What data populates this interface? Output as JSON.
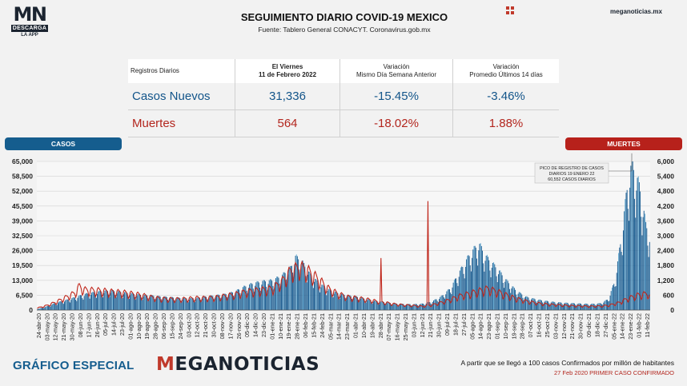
{
  "brand": {
    "logo_letters": "MN",
    "logo_band": "DESCARGA",
    "logo_sub": "LA APP",
    "site": "meganoticias.mx"
  },
  "header": {
    "title": "SEGUIMIENTO DIARIO COVID-19 MEXICO",
    "subtitle": "Fuente: Tablero General CONACYT. Coronavirus.gob.mx"
  },
  "summary": {
    "headers": [
      "Registros Diarios",
      "El Viernes\n11 de Febrero 2022",
      "Variación\nMismo Día Semana Anterior",
      "Variación\nPromedio Últimos 14 días"
    ],
    "rows": [
      {
        "label": "Casos Nuevos",
        "value": "31,336",
        "var_week": "-15.45%",
        "var_14d": "-3.46%"
      },
      {
        "label": "Muertes",
        "value": "564",
        "var_week": "-18.02%",
        "var_14d": "1.88%"
      }
    ]
  },
  "labels": {
    "cases": "CASOS",
    "deaths": "MUERTES"
  },
  "annotation": {
    "lines": [
      "PICO DE REGISTRO DE CASOS",
      "DIARIOS 19 ENERO 22",
      "60,552 CASOS DIARIOS"
    ]
  },
  "colors": {
    "cases": "#1d5f93",
    "deaths": "#c0271c",
    "cases_light": "#5ea6cf"
  },
  "footer": {
    "left": "GRÁFICO ESPECIAL",
    "brand_first": "M",
    "brand_rest": "EGANOTICIAS",
    "note1": "A partir que se llegó a 100 casos Confirmados por millón de habitantes",
    "note2": "27 Feb 2020 PRIMER CASO CONFIRMADO"
  },
  "chart_data": {
    "type": "bar",
    "x_tick_labels": [
      "24-abr-20",
      "03-may-20",
      "12-may-20",
      "21-may-20",
      "30-may-20",
      "08-jun-20",
      "17-jun-20",
      "26-jun-20",
      "05-jul-20",
      "14-jul-20",
      "23-jul-20",
      "01-ago-20",
      "10-ago-20",
      "19-ago-20",
      "28-ago-20",
      "06-sep-20",
      "15-sep-20",
      "24-sep-20",
      "03-oct-20",
      "12-oct-20",
      "21-oct-20",
      "30-oct-20",
      "08-nov-20",
      "17-nov-20",
      "26-nov-20",
      "05-dic-20",
      "14-dic-20",
      "23-dic-20",
      "01-ene-21",
      "10-ene-21",
      "19-ene-21",
      "28-ene-21",
      "06-feb-21",
      "15-feb-21",
      "24-feb-21",
      "05-mar-21",
      "14-mar-21",
      "23-mar-21",
      "01-abr-21",
      "10-abr-21",
      "19-abr-21",
      "28-abr-21",
      "07-may-21",
      "16-may-21",
      "25-may-21",
      "03-jun-21",
      "12-jun-21",
      "21-jun-21",
      "30-jun-21",
      "09-jul-21",
      "18-jul-21",
      "27-jul-21",
      "05-ago-21",
      "14-ago-21",
      "23-ago-21",
      "01-sep-21",
      "10-sep-21",
      "19-sep-21",
      "28-sep-21",
      "07-oct-21",
      "16-oct-21",
      "25-oct-21",
      "03-nov-21",
      "12-nov-21",
      "21-nov-21",
      "30-nov-21",
      "09-dic-21",
      "18-dic-21",
      "27-dic-21",
      "05-ene-22",
      "14-ene-22",
      "23-ene-22",
      "01-feb-22",
      "11-feb-22"
    ],
    "y_left": {
      "label": "CASOS",
      "range": [
        0,
        65000
      ],
      "ticks": [
        "0",
        "6,500",
        "13,000",
        "19,500",
        "26,000",
        "32,500",
        "39,000",
        "45,500",
        "52,000",
        "58,500",
        "65,000"
      ]
    },
    "y_right": {
      "label": "MUERTES",
      "range": [
        0,
        6000
      ],
      "ticks": [
        "0",
        "600",
        "1,200",
        "1,800",
        "2,400",
        "3,000",
        "3,600",
        "4,200",
        "4,800",
        "5,400",
        "6,000"
      ]
    },
    "grid": true,
    "cases_knots": [
      [
        0,
        400
      ],
      [
        10,
        1500
      ],
      [
        20,
        3000
      ],
      [
        30,
        4000
      ],
      [
        40,
        5200
      ],
      [
        50,
        6500
      ],
      [
        60,
        7200
      ],
      [
        70,
        7800
      ],
      [
        80,
        8000
      ],
      [
        90,
        7400
      ],
      [
        100,
        6800
      ],
      [
        110,
        6300
      ],
      [
        120,
        6000
      ],
      [
        130,
        5600
      ],
      [
        140,
        5300
      ],
      [
        150,
        5000
      ],
      [
        160,
        4800
      ],
      [
        170,
        5000
      ],
      [
        180,
        5500
      ],
      [
        190,
        6000
      ],
      [
        200,
        6500
      ],
      [
        210,
        7500
      ],
      [
        220,
        9500
      ],
      [
        230,
        11000
      ],
      [
        240,
        11800
      ],
      [
        250,
        12200
      ],
      [
        260,
        14000
      ],
      [
        270,
        17500
      ],
      [
        275,
        22000
      ],
      [
        282,
        20000
      ],
      [
        290,
        15000
      ],
      [
        300,
        11000
      ],
      [
        310,
        8500
      ],
      [
        320,
        7000
      ],
      [
        330,
        6000
      ],
      [
        340,
        5500
      ],
      [
        350,
        4600
      ],
      [
        360,
        3800
      ],
      [
        370,
        3300
      ],
      [
        380,
        2700
      ],
      [
        390,
        2500
      ],
      [
        400,
        2400
      ],
      [
        410,
        2600
      ],
      [
        420,
        3500
      ],
      [
        430,
        5500
      ],
      [
        440,
        9000
      ],
      [
        450,
        16000
      ],
      [
        460,
        22500
      ],
      [
        470,
        27500
      ],
      [
        478,
        22000
      ],
      [
        490,
        17000
      ],
      [
        500,
        12000
      ],
      [
        510,
        8000
      ],
      [
        520,
        5500
      ],
      [
        530,
        4500
      ],
      [
        540,
        3800
      ],
      [
        550,
        3300
      ],
      [
        560,
        3000
      ],
      [
        570,
        2800
      ],
      [
        580,
        2600
      ],
      [
        590,
        2500
      ],
      [
        600,
        2800
      ],
      [
        608,
        4500
      ],
      [
        615,
        12000
      ],
      [
        622,
        30000
      ],
      [
        628,
        50000
      ],
      [
        633,
        60552
      ],
      [
        638,
        55000
      ],
      [
        643,
        48000
      ],
      [
        648,
        35000
      ],
      [
        652,
        31336
      ]
    ],
    "deaths_knots": [
      [
        0,
        80
      ],
      [
        10,
        180
      ],
      [
        20,
        320
      ],
      [
        30,
        500
      ],
      [
        40,
        680
      ],
      [
        45,
        950
      ],
      [
        50,
        800
      ],
      [
        60,
        780
      ],
      [
        70,
        760
      ],
      [
        80,
        720
      ],
      [
        90,
        700
      ],
      [
        100,
        650
      ],
      [
        110,
        600
      ],
      [
        120,
        520
      ],
      [
        130,
        460
      ],
      [
        140,
        440
      ],
      [
        150,
        430
      ],
      [
        160,
        450
      ],
      [
        170,
        480
      ],
      [
        180,
        480
      ],
      [
        190,
        500
      ],
      [
        200,
        560
      ],
      [
        210,
        620
      ],
      [
        220,
        700
      ],
      [
        230,
        760
      ],
      [
        240,
        800
      ],
      [
        250,
        850
      ],
      [
        260,
        1100
      ],
      [
        270,
        1550
      ],
      [
        280,
        1700
      ],
      [
        290,
        1500
      ],
      [
        300,
        1200
      ],
      [
        310,
        850
      ],
      [
        320,
        650
      ],
      [
        330,
        520
      ],
      [
        340,
        480
      ],
      [
        350,
        430
      ],
      [
        360,
        360
      ],
      [
        370,
        300
      ],
      [
        380,
        240
      ],
      [
        390,
        200
      ],
      [
        400,
        180
      ],
      [
        410,
        150
      ],
      [
        420,
        200
      ],
      [
        430,
        300
      ],
      [
        440,
        420
      ],
      [
        450,
        560
      ],
      [
        460,
        650
      ],
      [
        470,
        760
      ],
      [
        480,
        840
      ],
      [
        490,
        730
      ],
      [
        500,
        590
      ],
      [
        510,
        460
      ],
      [
        520,
        360
      ],
      [
        530,
        290
      ],
      [
        540,
        240
      ],
      [
        550,
        210
      ],
      [
        560,
        190
      ],
      [
        570,
        170
      ],
      [
        580,
        160
      ],
      [
        590,
        150
      ],
      [
        600,
        160
      ],
      [
        610,
        200
      ],
      [
        620,
        300
      ],
      [
        630,
        480
      ],
      [
        640,
        600
      ],
      [
        650,
        650
      ],
      [
        652,
        564
      ]
    ],
    "deaths_spikes": [
      {
        "index": 366,
        "value": 2100
      },
      {
        "index": 416,
        "value": 4400
      }
    ]
  }
}
